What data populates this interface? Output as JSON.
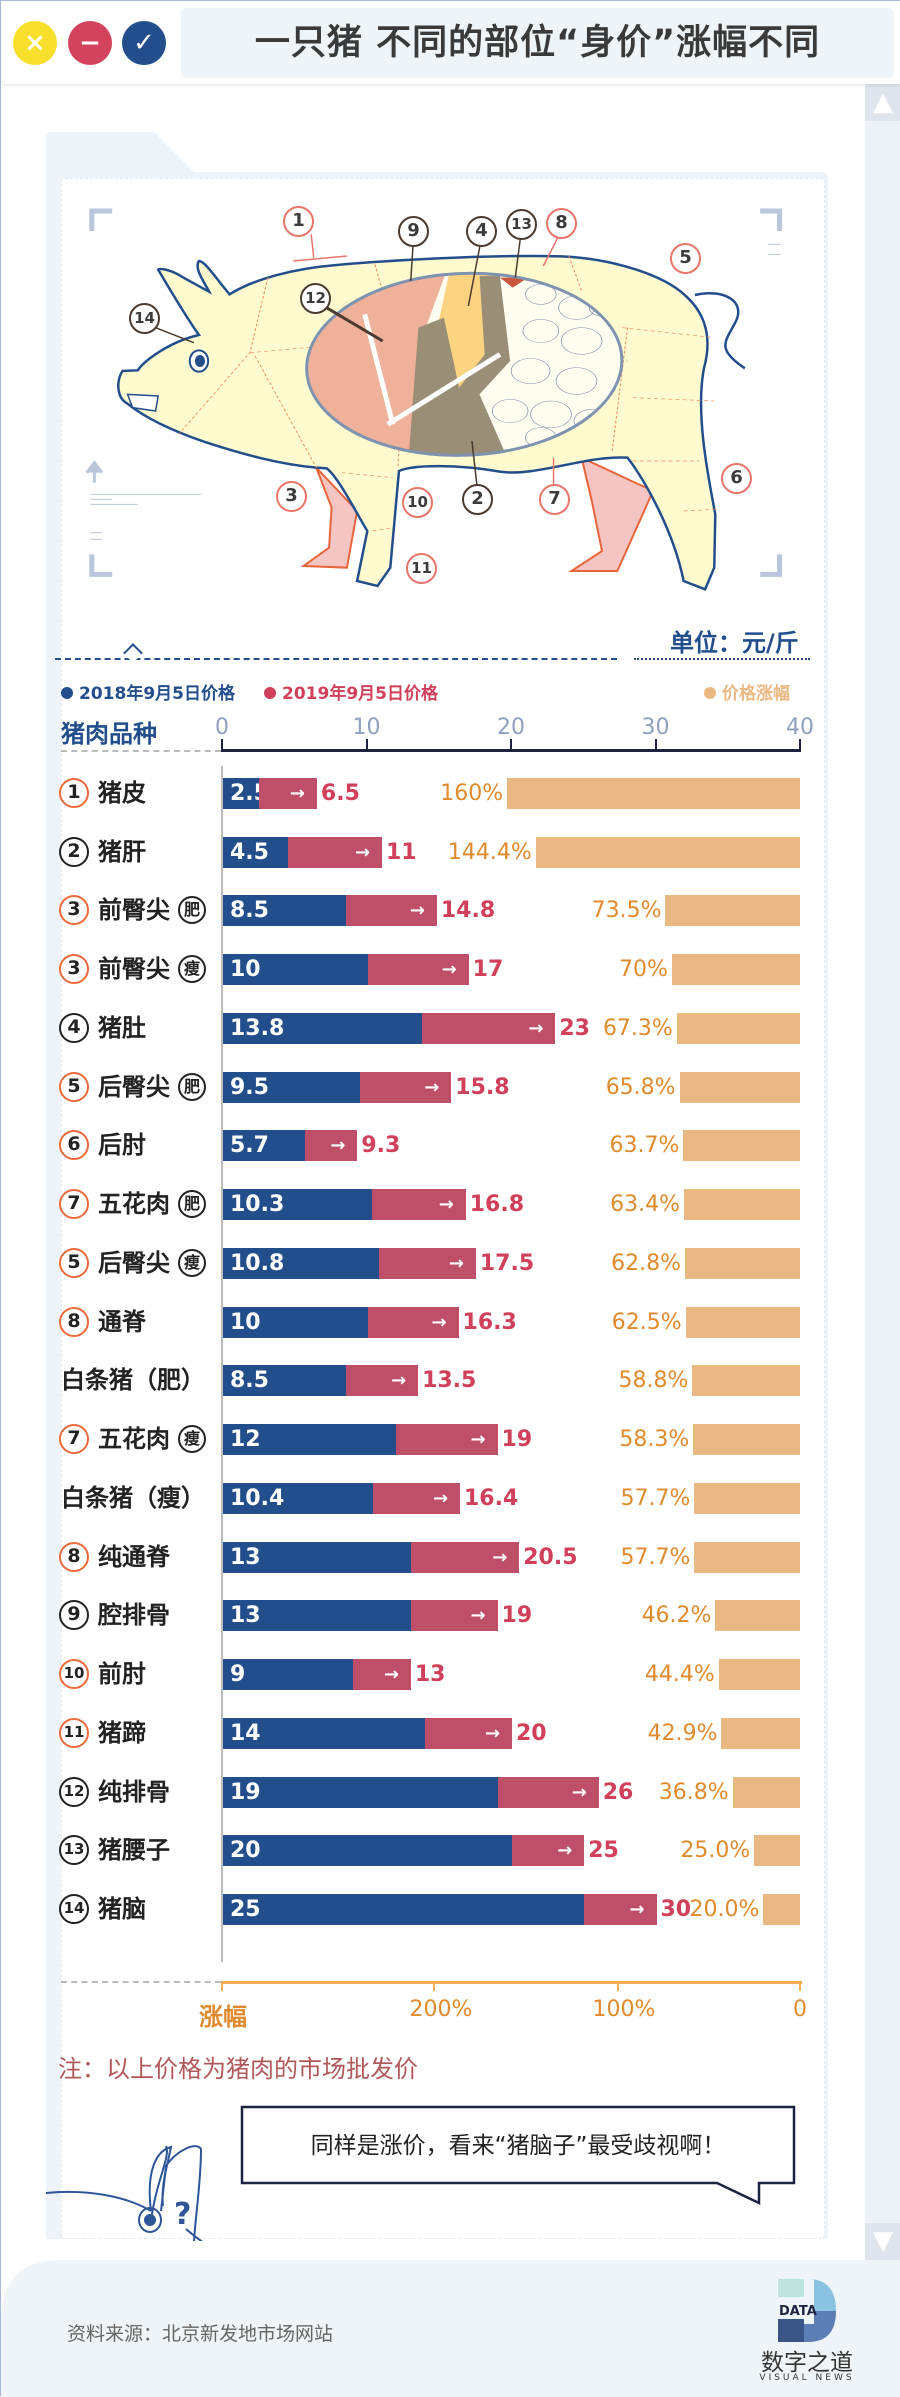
{
  "window_controls": {
    "close_icon": "×",
    "minimize_icon": "−",
    "confirm_icon": "✓",
    "colors": [
      "#f7df2b",
      "#d3435d",
      "#234e8c"
    ]
  },
  "title": "一只猪 不同的部位“身价”涨幅不同",
  "diagram": {
    "labels": [
      "1",
      "9",
      "4",
      "13",
      "8",
      "5",
      "12",
      "14",
      "3",
      "10",
      "2",
      "7",
      "6",
      "11"
    ]
  },
  "unit": "单位：元/斤",
  "chart_data": {
    "type": "bar",
    "legend": {
      "s2018": "2018年9月5日价格",
      "s2019": "2019年9月5日价格",
      "pct": "价格涨幅"
    },
    "ylabel": "猪肉品种",
    "xlim": [
      0,
      40
    ],
    "xticks": [
      "0",
      "10",
      "20",
      "30",
      "40"
    ],
    "pct_axis": {
      "label": "涨幅",
      "xlim": [
        250,
        0
      ],
      "ticks": [
        "200%",
        "100%",
        "0"
      ]
    },
    "colors": {
      "s2018": "#234e8c",
      "s2019": "#bf4e68",
      "pct": "#eab883",
      "pct_text": "#e08a2e",
      "red_text": "#d0405a"
    },
    "rows": [
      {
        "num": "1",
        "name": "猪皮",
        "tag": "",
        "v2018": 2.5,
        "v2019": 6.5,
        "pct": 160,
        "pct_label": "160%"
      },
      {
        "num": "2",
        "name": "猪肝",
        "tag": "",
        "v2018": 4.5,
        "v2019": 11,
        "pct": 144.4,
        "pct_label": "144.4%"
      },
      {
        "num": "3",
        "name": "前臀尖",
        "tag": "肥",
        "v2018": 8.5,
        "v2019": 14.8,
        "pct": 73.5,
        "pct_label": "73.5%"
      },
      {
        "num": "3",
        "name": "前臀尖",
        "tag": "瘦",
        "v2018": 10,
        "v2019": 17,
        "pct": 70,
        "pct_label": "70%"
      },
      {
        "num": "4",
        "name": "猪肚",
        "tag": "",
        "v2018": 13.8,
        "v2019": 23,
        "pct": 67.3,
        "pct_label": "67.3%"
      },
      {
        "num": "5",
        "name": "后臀尖",
        "tag": "肥",
        "v2018": 9.5,
        "v2019": 15.8,
        "pct": 65.8,
        "pct_label": "65.8%"
      },
      {
        "num": "6",
        "name": "后肘",
        "tag": "",
        "v2018": 5.7,
        "v2019": 9.3,
        "pct": 63.7,
        "pct_label": "63.7%"
      },
      {
        "num": "7",
        "name": "五花肉",
        "tag": "肥",
        "v2018": 10.3,
        "v2019": 16.8,
        "pct": 63.4,
        "pct_label": "63.4%"
      },
      {
        "num": "5",
        "name": "后臀尖",
        "tag": "瘦",
        "v2018": 10.8,
        "v2019": 17.5,
        "pct": 62.8,
        "pct_label": "62.8%"
      },
      {
        "num": "8",
        "name": "通脊",
        "tag": "",
        "v2018": 10,
        "v2019": 16.3,
        "pct": 62.5,
        "pct_label": "62.5%"
      },
      {
        "num": "",
        "name": "白条猪（肥）",
        "tag": "",
        "v2018": 8.5,
        "v2019": 13.5,
        "pct": 58.8,
        "pct_label": "58.8%"
      },
      {
        "num": "7",
        "name": "五花肉",
        "tag": "瘦",
        "v2018": 12,
        "v2019": 19,
        "pct": 58.3,
        "pct_label": "58.3%"
      },
      {
        "num": "",
        "name": "白条猪（瘦）",
        "tag": "",
        "v2018": 10.4,
        "v2019": 16.4,
        "pct": 57.7,
        "pct_label": "57.7%"
      },
      {
        "num": "8",
        "name": "纯通脊",
        "tag": "",
        "v2018": 13,
        "v2019": 20.5,
        "pct": 57.7,
        "pct_label": "57.7%"
      },
      {
        "num": "9",
        "name": "腔排骨",
        "tag": "",
        "v2018": 13,
        "v2019": 19,
        "pct": 46.2,
        "pct_label": "46.2%"
      },
      {
        "num": "10",
        "name": "前肘",
        "tag": "",
        "v2018": 9,
        "v2019": 13,
        "pct": 44.4,
        "pct_label": "44.4%"
      },
      {
        "num": "11",
        "name": "猪蹄",
        "tag": "",
        "v2018": 14,
        "v2019": 20,
        "pct": 42.9,
        "pct_label": "42.9%"
      },
      {
        "num": "12",
        "name": "纯排骨",
        "tag": "",
        "v2018": 19,
        "v2019": 26,
        "pct": 36.8,
        "pct_label": "36.8%"
      },
      {
        "num": "13",
        "name": "猪腰子",
        "tag": "",
        "v2018": 20,
        "v2019": 25,
        "pct": 25.0,
        "pct_label": "25.0%"
      },
      {
        "num": "14",
        "name": "猪脑",
        "tag": "",
        "v2018": 25,
        "v2019": 30,
        "pct": 20.0,
        "pct_label": "20.0%"
      }
    ]
  },
  "note": "注：以上价格为猪肉的市场批发价",
  "bubble": "同样是涨价，看来“猪脑子”最受歧视啊！",
  "doodle": {
    "question": "?"
  },
  "source": "资料来源：北京新发地市场网站",
  "logo": {
    "mark": "DATA",
    "name": "数字之道",
    "sub": "VISUAL NEWS"
  },
  "scrollbar": {
    "up_icon": "⌃",
    "down_icon": "⌄"
  }
}
